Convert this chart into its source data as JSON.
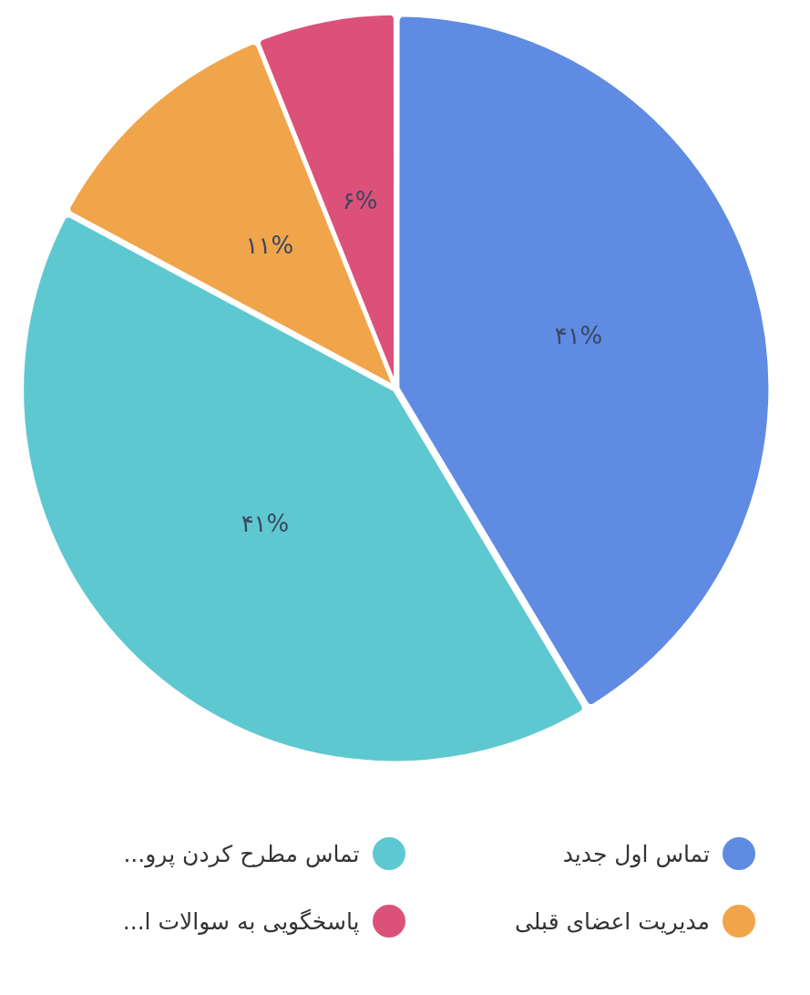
{
  "chart_data": {
    "type": "pie",
    "categories": [
      "تماس اول جدید",
      "تماس مطرح کردن پرو...",
      "مدیریت اعضای قبلی",
      "پاسخگویی به سوالات ا..."
    ],
    "values": [
      41,
      41,
      11,
      6
    ],
    "colors": [
      "#5f8be3",
      "#5ec8d0",
      "#f0a54b",
      "#dc517a"
    ],
    "value_labels": [
      "۴۱%",
      "۴۱%",
      "۱۱%",
      "۶%"
    ],
    "legend": "bottom"
  }
}
